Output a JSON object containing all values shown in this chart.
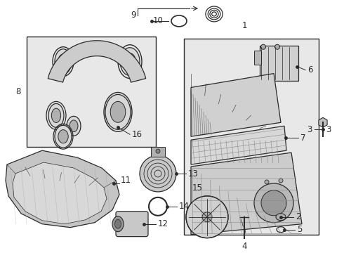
{
  "bg_color": "#ffffff",
  "line_color": "#2a2a2a",
  "box_fill_left": "#e8e8e8",
  "box_fill_right": "#e8e8e8",
  "part_gray": "#c8c8c8",
  "part_dark": "#909090",
  "part_light": "#e0e0e0"
}
